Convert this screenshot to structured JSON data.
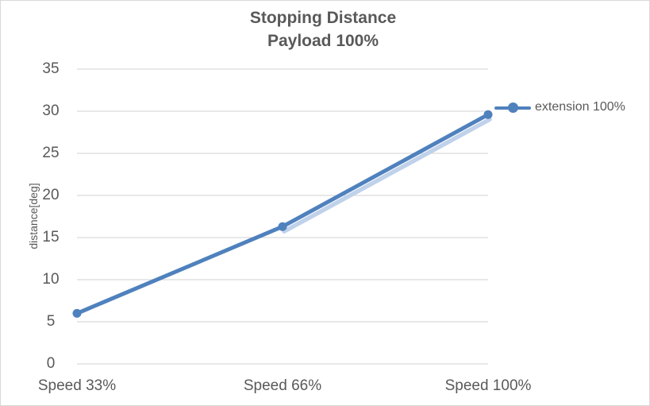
{
  "chart_data": {
    "type": "line",
    "title": "Stopping Distance",
    "subtitle": "Payload 100%",
    "categories": [
      "Speed 33%",
      "Speed 66%",
      "Speed 100%"
    ],
    "series": [
      {
        "name": "extension 100%",
        "values": [
          6.0,
          16.3,
          29.6
        ]
      }
    ],
    "xlabel": "",
    "ylabel": "distance[deg]",
    "ylim": [
      0,
      35
    ],
    "ytick_step": 5,
    "grid": true,
    "marker": "circle",
    "legend_position": "right-of-last-point",
    "glow_segment_indices": [
      1,
      2
    ],
    "colors": {
      "line": "#4F81BD",
      "line_glow": "#C0D2EA",
      "gridline": "#D9D9D9",
      "text": "#595959",
      "border": "#D9D9D9",
      "background": "#FFFFFF"
    }
  }
}
